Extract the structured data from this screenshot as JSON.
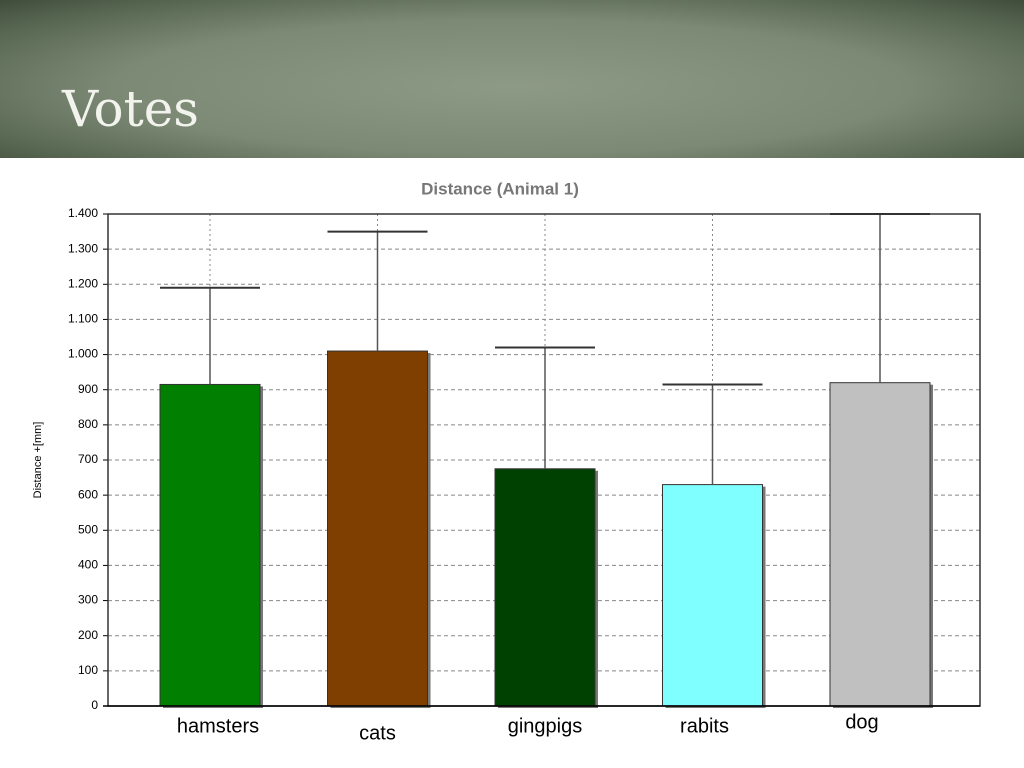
{
  "slide_title": "Votes",
  "chart_data": {
    "type": "bar",
    "title": "Distance (Animal 1)",
    "ylabel": "Distance +[mm]",
    "categories": [
      "hamsters",
      "cats",
      "gingpigs",
      "rabits",
      "dog"
    ],
    "values": [
      915,
      1010,
      675,
      630,
      920
    ],
    "errors": [
      275,
      340,
      345,
      285,
      480
    ],
    "colors": [
      "#007f00",
      "#7f3f00",
      "#004000",
      "#7fffff",
      "#c0c0c0"
    ],
    "ylim": [
      0,
      1400
    ],
    "yticks": [
      0,
      100,
      200,
      300,
      400,
      500,
      600,
      700,
      800,
      900,
      {
        "value": 1000,
        "label": "1.000"
      },
      {
        "value": 1100,
        "label": "1.100"
      },
      {
        "value": 1200,
        "label": "1.200"
      },
      {
        "value": 1300,
        "label": "1.300"
      },
      {
        "value": 1400,
        "label": "1.400"
      }
    ],
    "grid": true
  }
}
